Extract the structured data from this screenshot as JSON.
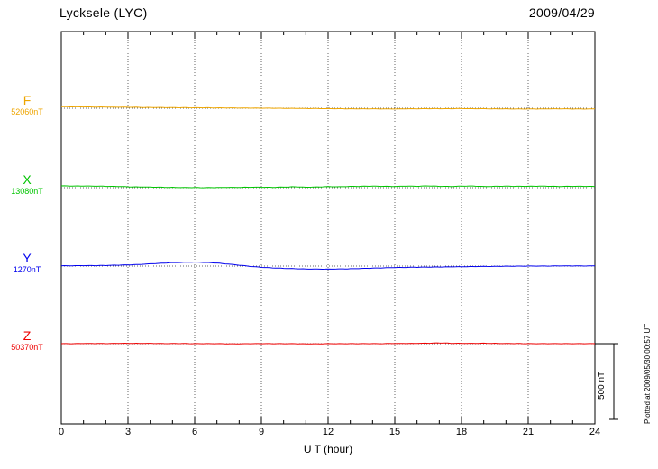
{
  "header": {
    "title": "Lycksele (LYC)",
    "date": "2009/04/29"
  },
  "axis": {
    "xlabel": "U T (hour)",
    "tick_labels": [
      "0",
      "3",
      "6",
      "9",
      "12",
      "15",
      "18",
      "21",
      "24"
    ]
  },
  "scalebar_label": "500 nT",
  "credit": "Plotted at 2009/05/30 00:57 UT",
  "chart_data": {
    "type": "line",
    "title": "Lycksele (LYC)",
    "date": "2009/04/29",
    "xlabel": "U T (hour)",
    "x_range": [
      0,
      24
    ],
    "x_ticks": [
      0,
      3,
      6,
      9,
      12,
      15,
      18,
      21,
      24
    ],
    "x_step_hours": 0.5,
    "scale_bar_nT": 500,
    "unit": "nT",
    "values_are": "offset_nT_from_baseline",
    "series": [
      {
        "name": "F",
        "baseline_label": "52060nT",
        "baseline_nT": 52060,
        "color": "#eea500",
        "values": [
          10,
          9,
          9,
          8,
          8,
          7,
          7,
          6,
          5,
          5,
          4,
          4,
          3,
          3,
          2,
          2,
          1,
          1,
          0,
          0,
          -1,
          -1,
          -2,
          -2,
          -3,
          -3,
          -4,
          -4,
          -4,
          -5,
          -5,
          -4,
          -4,
          -3,
          -3,
          -3,
          -2,
          -3,
          -3,
          -4,
          -4,
          -5,
          -5,
          -5,
          -4,
          -4,
          -5,
          -5,
          -5
        ]
      },
      {
        "name": "X",
        "baseline_label": "13080nT",
        "baseline_nT": 13080,
        "color": "#00c400",
        "values": [
          12,
          11,
          11,
          10,
          9,
          8,
          6,
          5,
          4,
          3,
          2,
          1,
          1,
          0,
          1,
          2,
          2,
          3,
          3,
          2,
          4,
          6,
          3,
          5,
          7,
          6,
          8,
          9,
          10,
          9,
          8,
          10,
          9,
          12,
          9,
          8,
          10,
          11,
          8,
          9,
          10,
          9,
          9,
          10,
          9,
          8,
          9,
          9,
          8
        ]
      },
      {
        "name": "Y",
        "baseline_label": "1270nT",
        "baseline_nT": 1270,
        "color": "#0000ee",
        "values": [
          2,
          2,
          3,
          3,
          4,
          6,
          8,
          11,
          15,
          19,
          23,
          25,
          26,
          24,
          20,
          13,
          6,
          -2,
          -8,
          -12,
          -15,
          -17,
          -19,
          -20,
          -20,
          -19,
          -18,
          -16,
          -14,
          -12,
          -10,
          -9,
          -8,
          -7,
          -6,
          -5,
          -4,
          -3,
          -2,
          -2,
          -1,
          -1,
          0,
          0,
          0,
          1,
          1,
          1,
          1
        ]
      },
      {
        "name": "Z",
        "baseline_label": "50370nT",
        "baseline_nT": 50370,
        "color": "#ee0000",
        "values": [
          0,
          0,
          1,
          1,
          1,
          2,
          2,
          2,
          2,
          1,
          1,
          1,
          0,
          0,
          0,
          -1,
          -1,
          0,
          0,
          0,
          0,
          0,
          -1,
          -1,
          0,
          0,
          0,
          0,
          0,
          0,
          1,
          1,
          2,
          3,
          5,
          3,
          2,
          2,
          3,
          2,
          1,
          1,
          0,
          0,
          0,
          0,
          0,
          0,
          0
        ]
      }
    ]
  }
}
